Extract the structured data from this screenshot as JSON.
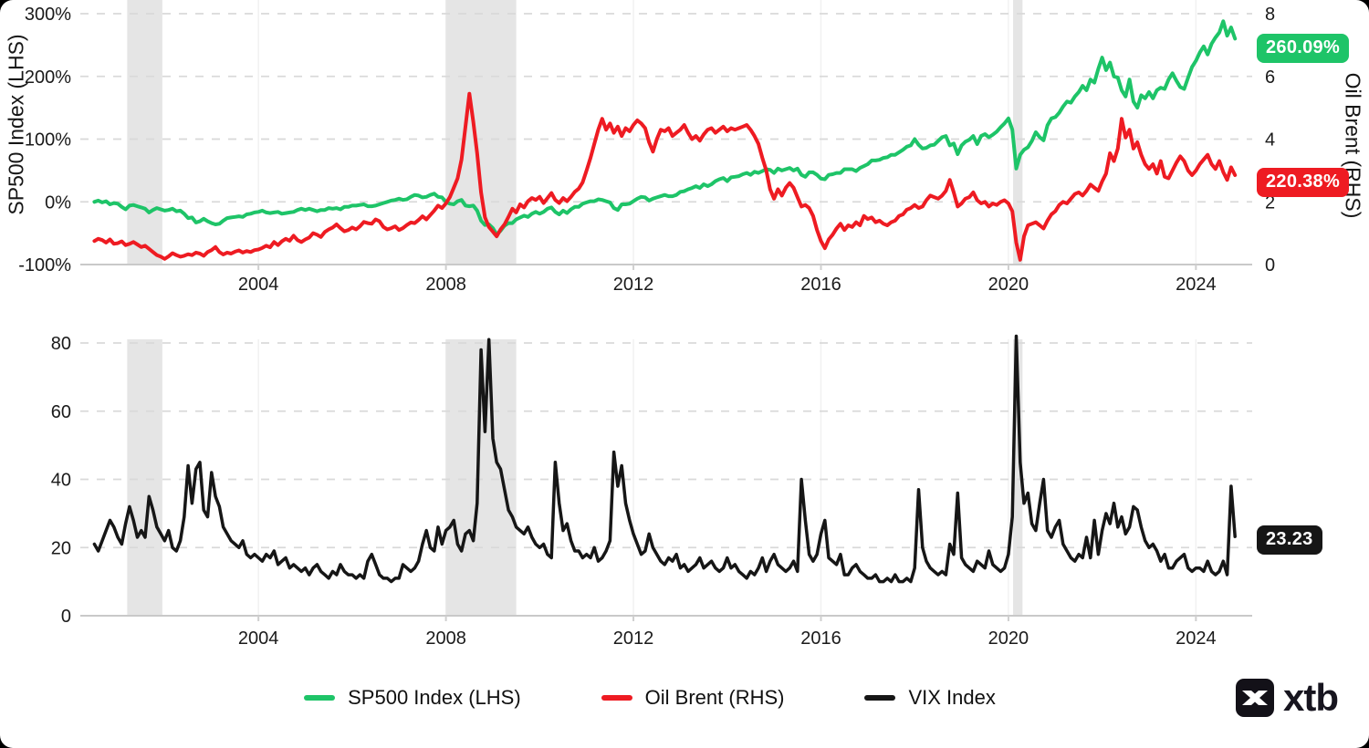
{
  "colors": {
    "green": "#1ec468",
    "red": "#ee1b22",
    "black": "#161616",
    "band": "#e5e5e5",
    "grid_dash": "#d9d9d9",
    "grid_solid": "#c9c9c9",
    "vgrid": "#f1f1f1",
    "tick": "#cfcfcf",
    "text": "#1a1a1a"
  },
  "top_chart": {
    "left_axis_title": "SP500 Index (LHS)",
    "right_axis_title": "Oil Brent (RHS)",
    "left_ticks": [
      "300%",
      "200%",
      "100%",
      "0%",
      "-100%"
    ],
    "right_ticks": [
      "8",
      "6",
      "4",
      "2",
      "0"
    ],
    "x_ticks": [
      "2004",
      "2008",
      "2012",
      "2016",
      "2020",
      "2024"
    ],
    "sp500_badge": "260.09%",
    "oil_badge": "220.38%"
  },
  "bottom_chart": {
    "y_ticks": [
      "80",
      "60",
      "40",
      "20",
      "0"
    ],
    "x_ticks": [
      "2004",
      "2008",
      "2012",
      "2016",
      "2020",
      "2024"
    ],
    "vix_badge": "23.23"
  },
  "legend": [
    {
      "label": "SP500 Index (LHS)",
      "color_key": "green"
    },
    {
      "label": "Oil Brent (RHS)",
      "color_key": "red"
    },
    {
      "label": "VIX Index",
      "color_key": "black"
    }
  ],
  "logo_text": "xtb",
  "chart_data": [
    {
      "type": "line",
      "title": "",
      "x_start": 2000.5,
      "x_step_years": 0.0833333,
      "x_axis": {
        "ticks": [
          2004,
          2008,
          2012,
          2016,
          2020,
          2024
        ],
        "range": [
          2000.2,
          2025.2
        ]
      },
      "left_axis": {
        "label": "SP500 Index (LHS)",
        "unit": "%",
        "ticks": [
          300,
          200,
          100,
          0,
          -100
        ],
        "range": [
          -100,
          300
        ]
      },
      "right_axis": {
        "label": "Oil Brent (RHS)",
        "ticks": [
          8,
          6,
          4,
          2,
          0
        ],
        "range": [
          0,
          8
        ]
      },
      "grid": "dashed-horizontal",
      "recession_bands": [
        [
          2001.2,
          2001.95
        ],
        [
          2008.0,
          2009.5
        ],
        [
          2020.1,
          2020.3
        ]
      ],
      "series": [
        {
          "name": "SP500 Index (LHS)",
          "axis": "left",
          "color": "green",
          "last_label": "260.09%",
          "values": [
            0,
            2,
            -1,
            1,
            -4,
            -2,
            -3,
            -8,
            -12,
            -6,
            -5,
            -7,
            -9,
            -11,
            -17,
            -13,
            -10,
            -12,
            -14,
            -13,
            -11,
            -15,
            -14,
            -19,
            -26,
            -25,
            -33,
            -31,
            -27,
            -31,
            -34,
            -36,
            -35,
            -30,
            -26,
            -25,
            -24,
            -23,
            -24,
            -20,
            -19,
            -17,
            -16,
            -14,
            -17,
            -18,
            -17,
            -16,
            -19,
            -18,
            -17,
            -16,
            -13,
            -11,
            -13,
            -11,
            -13,
            -15,
            -13,
            -13,
            -10,
            -11,
            -10,
            -12,
            -8,
            -8,
            -6,
            -6,
            -5,
            -4,
            -7,
            -7,
            -6,
            -4,
            -2,
            0,
            2,
            3,
            5,
            3,
            4,
            8,
            11,
            10,
            7,
            8,
            11,
            13,
            8,
            7,
            0,
            -3,
            -4,
            1,
            3,
            -6,
            -7,
            -6,
            -14,
            -30,
            -37,
            -36,
            -42,
            -52,
            -46,
            -38,
            -34,
            -34,
            -28,
            -25,
            -22,
            -24,
            -19,
            -16,
            -19,
            -16,
            -11,
            -9,
            -16,
            -20,
            -14,
            -18,
            -12,
            -8,
            -8,
            -3,
            -1,
            1,
            1,
            4,
            3,
            1,
            -1,
            -10,
            -13,
            -4,
            -4,
            -3,
            1,
            5,
            8,
            7,
            2,
            5,
            7,
            9,
            11,
            9,
            9,
            11,
            16,
            17,
            20,
            22,
            25,
            22,
            28,
            25,
            28,
            33,
            36,
            38,
            33,
            39,
            40,
            41,
            44,
            46,
            43,
            48,
            46,
            49,
            52,
            51,
            46,
            53,
            50,
            52,
            54,
            50,
            53,
            43,
            40,
            47,
            47,
            43,
            37,
            36,
            43,
            44,
            46,
            46,
            52,
            52,
            52,
            49,
            54,
            57,
            60,
            66,
            66,
            67,
            70,
            71,
            75,
            75,
            79,
            83,
            88,
            90,
            100,
            91,
            85,
            86,
            90,
            91,
            97,
            103,
            105,
            90,
            93,
            76,
            90,
            96,
            99,
            105,
            92,
            105,
            108,
            103,
            107,
            112,
            119,
            125,
            133,
            115,
            53,
            75,
            83,
            87,
            97,
            111,
            103,
            98,
            122,
            133,
            135,
            142,
            152,
            160,
            158,
            168,
            175,
            185,
            178,
            195,
            190,
            212,
            230,
            210,
            222,
            200,
            198,
            178,
            168,
            195,
            160,
            150,
            170,
            165,
            175,
            165,
            178,
            182,
            180,
            195,
            205,
            193,
            183,
            180,
            198,
            215,
            225,
            238,
            248,
            235,
            252,
            262,
            270,
            288,
            265,
            278,
            260.09
          ]
        },
        {
          "name": "Oil Brent (RHS)",
          "axis": "right",
          "color": "red",
          "last_label": "220.38%",
          "values": [
            0.75,
            0.82,
            0.78,
            0.7,
            0.8,
            0.66,
            0.68,
            0.74,
            0.62,
            0.66,
            0.72,
            0.64,
            0.56,
            0.6,
            0.5,
            0.4,
            0.3,
            0.25,
            0.18,
            0.26,
            0.36,
            0.3,
            0.25,
            0.28,
            0.33,
            0.3,
            0.38,
            0.35,
            0.28,
            0.4,
            0.46,
            0.56,
            0.4,
            0.32,
            0.38,
            0.35,
            0.41,
            0.45,
            0.38,
            0.43,
            0.4,
            0.46,
            0.48,
            0.53,
            0.6,
            0.55,
            0.72,
            0.62,
            0.74,
            0.82,
            0.76,
            0.92,
            0.78,
            0.72,
            0.8,
            0.86,
            1.0,
            0.95,
            0.88,
            1.04,
            1.12,
            1.18,
            1.28,
            1.16,
            1.06,
            1.1,
            1.18,
            1.12,
            1.22,
            1.36,
            1.32,
            1.3,
            1.44,
            1.38,
            1.2,
            1.12,
            1.16,
            1.22,
            1.1,
            1.16,
            1.26,
            1.34,
            1.32,
            1.42,
            1.54,
            1.44,
            1.58,
            1.72,
            1.88,
            1.8,
            1.95,
            2.15,
            2.45,
            2.75,
            3.35,
            4.4,
            5.45,
            4.55,
            3.55,
            2.3,
            1.5,
            1.2,
            1.05,
            0.9,
            1.12,
            1.28,
            1.52,
            1.78,
            1.66,
            1.92,
            1.82,
            2.02,
            2.12,
            2.06,
            2.16,
            1.96,
            2.12,
            2.28,
            2.06,
            1.96,
            2.12,
            2.02,
            2.16,
            2.32,
            2.42,
            2.62,
            3.0,
            3.4,
            3.85,
            4.3,
            4.65,
            4.3,
            4.5,
            4.2,
            4.4,
            4.1,
            4.35,
            4.25,
            4.45,
            4.6,
            4.5,
            4.35,
            3.9,
            3.6,
            4.0,
            4.3,
            4.25,
            4.35,
            4.1,
            4.2,
            4.3,
            4.45,
            4.2,
            4.0,
            4.1,
            3.95,
            4.15,
            4.3,
            4.35,
            4.2,
            4.3,
            4.4,
            4.25,
            4.35,
            4.3,
            4.35,
            4.4,
            4.45,
            4.3,
            4.1,
            3.85,
            3.4,
            3.0,
            2.4,
            2.1,
            2.4,
            2.2,
            2.45,
            2.6,
            2.45,
            2.15,
            1.85,
            1.9,
            1.8,
            1.55,
            1.1,
            0.75,
            0.52,
            0.8,
            0.95,
            1.15,
            1.3,
            1.1,
            1.25,
            1.2,
            1.35,
            1.25,
            1.55,
            1.45,
            1.5,
            1.35,
            1.4,
            1.3,
            1.25,
            1.35,
            1.4,
            1.55,
            1.6,
            1.75,
            1.8,
            1.9,
            1.8,
            1.85,
            2.05,
            2.2,
            2.15,
            2.1,
            2.2,
            2.35,
            2.7,
            2.3,
            1.85,
            1.95,
            2.1,
            2.15,
            2.3,
            2.05,
            1.95,
            2.0,
            1.85,
            1.95,
            1.9,
            2.0,
            2.05,
            1.95,
            1.7,
            0.7,
            0.15,
            0.9,
            1.25,
            1.3,
            1.35,
            1.25,
            1.15,
            1.4,
            1.6,
            1.7,
            1.9,
            2.0,
            1.95,
            2.1,
            2.25,
            2.3,
            2.2,
            2.35,
            2.55,
            2.45,
            2.35,
            2.65,
            2.9,
            3.55,
            3.3,
            3.7,
            4.65,
            4.05,
            4.3,
            3.7,
            3.9,
            3.5,
            3.2,
            3.05,
            3.2,
            2.9,
            3.3,
            2.8,
            2.75,
            3.0,
            3.25,
            3.45,
            3.3,
            3.0,
            2.85,
            3.0,
            3.2,
            3.35,
            3.5,
            3.2,
            3.05,
            3.3,
            2.95,
            2.7,
            3.1,
            2.85
          ]
        }
      ]
    },
    {
      "type": "line",
      "title": "",
      "x_start": 2000.5,
      "x_step_years": 0.0833333,
      "x_axis": {
        "ticks": [
          2004,
          2008,
          2012,
          2016,
          2020,
          2024
        ],
        "range": [
          2000.2,
          2025.2
        ]
      },
      "y_axis": {
        "label": "",
        "ticks": [
          80,
          60,
          40,
          20,
          0
        ],
        "range": [
          0,
          80
        ]
      },
      "grid": "dashed-horizontal",
      "recession_bands": [
        [
          2001.2,
          2001.95
        ],
        [
          2008.0,
          2009.5
        ],
        [
          2020.1,
          2020.3
        ]
      ],
      "series": [
        {
          "name": "VIX Index",
          "axis": "left",
          "color": "black",
          "last_label": "23.23",
          "values": [
            21,
            19,
            22,
            25,
            28,
            26,
            23,
            21,
            27,
            32,
            28,
            23,
            25,
            23,
            35,
            31,
            26,
            24,
            22,
            25,
            20,
            19,
            22,
            29,
            44,
            33,
            43,
            45,
            31,
            29,
            42,
            35,
            32,
            26,
            24,
            22,
            21,
            20,
            22,
            18,
            17,
            18,
            17,
            16,
            18,
            17,
            19,
            15,
            16,
            17,
            14,
            15,
            14,
            13,
            14,
            12,
            14,
            15,
            13,
            12,
            11,
            13,
            12,
            15,
            13,
            12,
            12,
            11,
            12,
            11,
            16,
            18,
            15,
            12,
            11,
            11,
            10,
            11,
            11,
            15,
            14,
            13,
            14,
            16,
            21,
            25,
            20,
            19,
            26,
            21,
            25,
            26,
            28,
            21,
            19,
            24,
            25,
            22,
            33,
            78,
            54,
            81,
            52,
            45,
            43,
            37,
            31,
            29,
            26,
            25,
            24,
            26,
            23,
            21,
            20,
            21,
            18,
            17,
            45,
            33,
            25,
            27,
            22,
            19,
            19,
            17,
            18,
            17,
            20,
            16,
            17,
            19,
            22,
            48,
            38,
            44,
            33,
            28,
            24,
            21,
            18,
            19,
            24,
            20,
            18,
            16,
            15,
            17,
            16,
            18,
            14,
            15,
            13,
            14,
            15,
            17,
            14,
            15,
            16,
            14,
            13,
            14,
            17,
            14,
            15,
            13,
            12,
            11,
            13,
            12,
            14,
            17,
            13,
            16,
            18,
            15,
            14,
            13,
            14,
            16,
            13,
            40,
            28,
            18,
            16,
            18,
            24,
            28,
            17,
            16,
            15,
            18,
            12,
            12,
            14,
            15,
            13,
            12,
            11,
            11,
            12,
            10,
            10,
            11,
            10,
            12,
            10,
            10,
            11,
            10,
            14,
            37,
            20,
            16,
            14,
            13,
            12,
            13,
            12,
            21,
            18,
            36,
            17,
            15,
            14,
            13,
            16,
            15,
            14,
            19,
            15,
            14,
            13,
            14,
            18,
            29,
            82,
            45,
            33,
            36,
            27,
            25,
            33,
            40,
            25,
            23,
            26,
            28,
            21,
            19,
            17,
            16,
            18,
            17,
            23,
            17,
            28,
            18,
            25,
            30,
            27,
            33,
            26,
            29,
            24,
            26,
            32,
            31,
            26,
            22,
            20,
            21,
            19,
            16,
            18,
            14,
            14,
            16,
            17,
            18,
            14,
            13,
            14,
            14,
            13,
            16,
            13,
            12,
            13,
            16,
            12,
            38,
            23.23
          ]
        }
      ]
    }
  ]
}
